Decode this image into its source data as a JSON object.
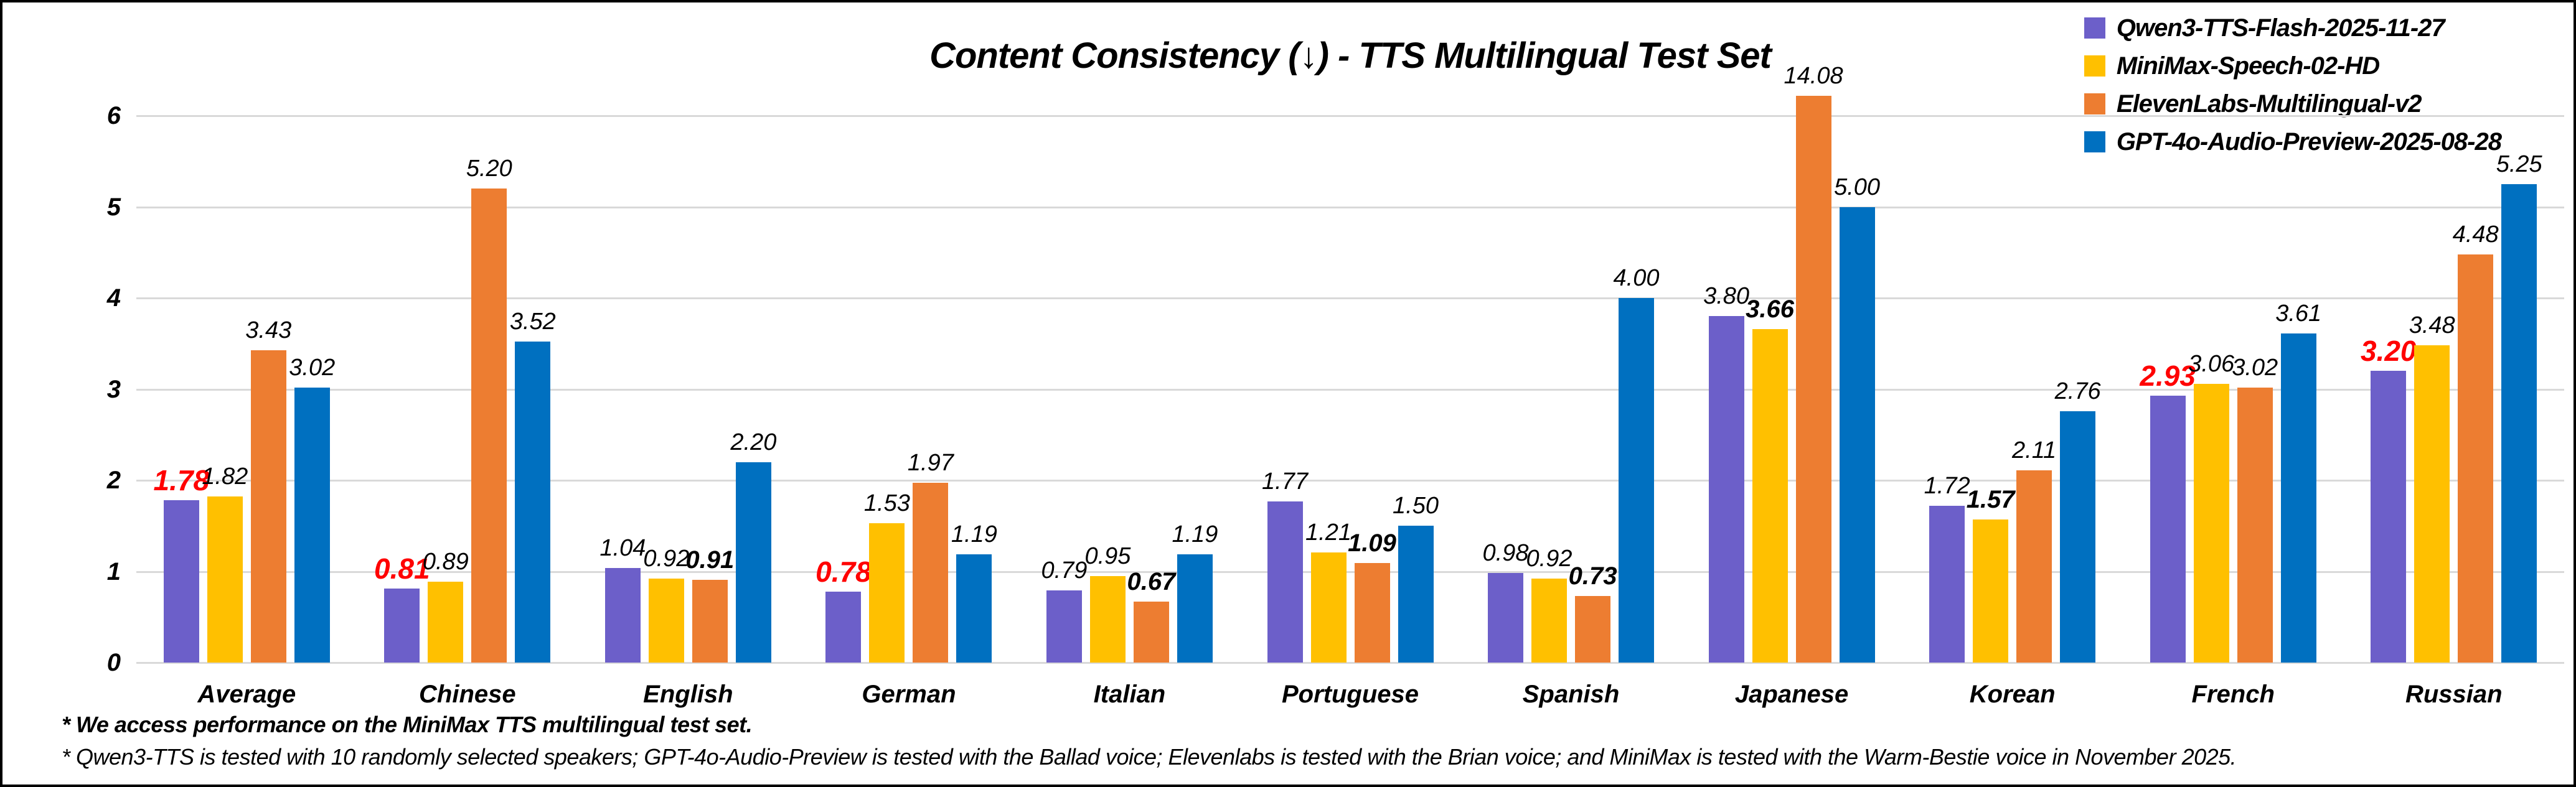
{
  "chart_data": {
    "type": "bar",
    "title": "Content Consistency (↓) - TTS Multilingual Test Set",
    "categories": [
      "Average",
      "Chinese",
      "English",
      "German",
      "Italian",
      "Portuguese",
      "Spanish",
      "Japanese",
      "Korean",
      "French",
      "Russian"
    ],
    "series": [
      {
        "name": "Qwen3-TTS-Flash-2025-11-27",
        "color": "#6C5FC9",
        "values": [
          1.78,
          0.81,
          1.04,
          0.78,
          0.79,
          1.77,
          0.98,
          3.8,
          1.72,
          2.93,
          3.2
        ],
        "label_styles": [
          "best-red",
          "best-red",
          "normal",
          "best-red",
          "normal",
          "normal",
          "normal",
          "normal",
          "normal",
          "best-red",
          "best-red"
        ]
      },
      {
        "name": "MiniMax-Speech-02-HD",
        "color": "#FFC000",
        "values": [
          1.82,
          0.89,
          0.92,
          1.53,
          0.95,
          1.21,
          0.92,
          3.66,
          1.57,
          3.06,
          3.48
        ],
        "label_styles": [
          "normal",
          "normal",
          "normal",
          "normal",
          "normal",
          "normal",
          "normal",
          "best-bold",
          "best-bold",
          "normal",
          "normal"
        ]
      },
      {
        "name": "ElevenLabs-Multilingual-v2",
        "color": "#ED7D31",
        "values": [
          3.43,
          5.2,
          0.91,
          1.97,
          0.67,
          1.09,
          0.73,
          14.08,
          2.11,
          3.02,
          4.48
        ],
        "label_styles": [
          "normal",
          "normal",
          "best-bold",
          "normal",
          "best-bold",
          "best-bold",
          "best-bold",
          "normal",
          "normal",
          "normal",
          "normal"
        ]
      },
      {
        "name": "GPT-4o-Audio-Preview-2025-08-28",
        "color": "#0070C0",
        "values": [
          3.02,
          3.52,
          2.2,
          1.19,
          1.19,
          1.5,
          4.0,
          5.0,
          2.76,
          3.61,
          5.25
        ],
        "label_styles": [
          "normal",
          "normal",
          "normal",
          "normal",
          "normal",
          "normal",
          "normal",
          "normal",
          "normal",
          "normal",
          "normal"
        ]
      }
    ],
    "yticks": [
      0,
      1,
      2,
      3,
      4,
      5,
      6
    ],
    "ylim": [
      0,
      6.22
    ],
    "value_decimals": 2,
    "grid": true,
    "gridline_color": "#D9D9D9",
    "best_label_color": "#FF0000",
    "legend_position": "top-right"
  },
  "footnotes": {
    "line1": "* We access performance on the MiniMax TTS multilingual test set.",
    "line2": "* Qwen3-TTS is tested with 10 randomly selected speakers; GPT-4o-Audio-Preview is tested with the Ballad voice; Elevenlabs is tested with the Brian voice; and MiniMax is tested with the Warm-Bestie voice in November 2025."
  }
}
